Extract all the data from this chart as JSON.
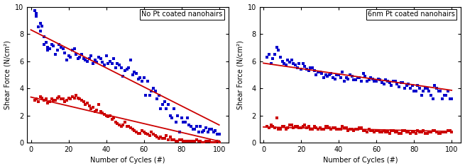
{
  "left_title": "No Pt coated nanohairs",
  "right_title": "6nm Pt coated nanohairs",
  "xlabel": "Number of Cycles (#)",
  "ylabel": "Shear Force (N/cm²)",
  "ylim": [
    0,
    10
  ],
  "xlim": [
    -2,
    105
  ],
  "yticks": [
    0,
    2,
    4,
    6,
    8,
    10
  ],
  "xticks": [
    0,
    20,
    40,
    60,
    80,
    100
  ],
  "left_blue_x": [
    2,
    3,
    4,
    5,
    6,
    7,
    8,
    9,
    10,
    12,
    14,
    16,
    18,
    20,
    22,
    24,
    26,
    28,
    30,
    32,
    34,
    36,
    38,
    40,
    42,
    44,
    46,
    48,
    50,
    52,
    54,
    56,
    58,
    60,
    62,
    64,
    66,
    68,
    70,
    72,
    74,
    76,
    78,
    80,
    82,
    84,
    86,
    88,
    90,
    92,
    94,
    96,
    98,
    100,
    3,
    5,
    7,
    9,
    11,
    13,
    15,
    17,
    19,
    21,
    23,
    25,
    27,
    29,
    31,
    33,
    35,
    37,
    39,
    41,
    43,
    45,
    47,
    49,
    51,
    53,
    55,
    57,
    59,
    61,
    63,
    65,
    67,
    69,
    71,
    73,
    75,
    77,
    79,
    81,
    83,
    85,
    87,
    89,
    91,
    93,
    95,
    97,
    99
  ],
  "left_blue_y": [
    9.7,
    9.3,
    8.5,
    8.2,
    8.6,
    7.8,
    7.4,
    7.0,
    6.9,
    7.1,
    6.8,
    7.0,
    6.6,
    6.4,
    6.8,
    6.5,
    6.3,
    6.2,
    6.0,
    6.4,
    6.1,
    6.3,
    5.9,
    6.4,
    6.0,
    6.2,
    5.8,
    5.5,
    5.3,
    5.5,
    5.0,
    5.1,
    4.8,
    4.8,
    4.5,
    3.8,
    3.8,
    3.5,
    2.8,
    2.5,
    2.0,
    2.5,
    2.0,
    1.8,
    1.5,
    1.3,
    1.0,
    1.2,
    1.2,
    0.9,
    0.8,
    1.0,
    0.9,
    0.6,
    9.5,
    8.8,
    7.2,
    6.8,
    7.2,
    6.5,
    7.2,
    6.9,
    6.1,
    6.3,
    6.9,
    6.2,
    6.5,
    6.1,
    6.2,
    5.8,
    5.9,
    6.2,
    5.7,
    5.8,
    5.8,
    5.5,
    5.7,
    4.9,
    5.4,
    6.1,
    5.2,
    4.7,
    4.5,
    3.5,
    3.5,
    4.0,
    3.2,
    2.5,
    3.0,
    2.8,
    1.8,
    1.5,
    0.8,
    1.5,
    1.8,
    1.2,
    1.0,
    0.8,
    0.8,
    1.1,
    1.0,
    0.8,
    0.6
  ],
  "left_blue_line_x": [
    0,
    100
  ],
  "left_blue_line_y": [
    8.3,
    1.3
  ],
  "left_red_x": [
    2,
    4,
    6,
    8,
    10,
    12,
    14,
    16,
    18,
    20,
    22,
    24,
    26,
    28,
    30,
    32,
    34,
    36,
    38,
    40,
    42,
    44,
    46,
    48,
    50,
    52,
    54,
    56,
    58,
    60,
    62,
    64,
    66,
    68,
    70,
    72,
    74,
    76,
    78,
    80,
    82,
    84,
    86,
    88,
    90,
    92,
    94,
    96,
    98,
    100,
    3,
    5,
    7,
    9,
    11,
    13,
    15,
    17,
    19,
    21,
    23,
    25,
    27,
    29,
    31,
    33,
    35,
    37,
    39,
    41,
    43,
    45,
    47,
    49,
    51,
    53,
    55,
    57,
    59,
    61,
    63,
    65,
    67,
    69,
    71,
    73,
    75,
    77,
    79,
    81,
    83,
    85,
    87,
    89,
    91,
    93,
    95,
    97,
    99
  ],
  "left_red_y": [
    3.1,
    3.0,
    3.3,
    3.2,
    3.0,
    3.1,
    3.3,
    3.2,
    3.0,
    3.3,
    3.4,
    3.5,
    3.2,
    3.0,
    2.9,
    2.5,
    2.3,
    2.8,
    2.2,
    2.0,
    2.0,
    1.8,
    1.4,
    1.2,
    1.5,
    1.2,
    1.0,
    0.8,
    0.7,
    0.8,
    0.6,
    0.8,
    0.5,
    0.3,
    0.3,
    0.5,
    0.4,
    0.2,
    0.1,
    0.2,
    0.1,
    0.1,
    0.1,
    0.2,
    0.1,
    0.0,
    0.1,
    0.0,
    0.0,
    0.0,
    3.2,
    3.4,
    3.1,
    2.9,
    3.2,
    3.1,
    3.4,
    3.2,
    3.1,
    3.2,
    3.3,
    3.3,
    3.1,
    2.8,
    2.7,
    2.6,
    2.4,
    2.3,
    2.1,
    1.9,
    1.7,
    1.5,
    1.3,
    1.3,
    1.2,
    1.1,
    0.9,
    0.7,
    0.9,
    0.7,
    0.5,
    0.6,
    0.4,
    0.4,
    0.3,
    0.2,
    0.2,
    0.1,
    0.2,
    0.1,
    0.1,
    0.1,
    0.1,
    0.1,
    0.0,
    0.1,
    0.1,
    0.0,
    0.1
  ],
  "left_red_line_x": [
    0,
    100
  ],
  "left_red_line_y": [
    3.35,
    0.1
  ],
  "right_blue_x": [
    2,
    4,
    6,
    8,
    10,
    12,
    14,
    16,
    18,
    20,
    22,
    24,
    26,
    28,
    30,
    32,
    34,
    36,
    38,
    40,
    42,
    44,
    46,
    48,
    50,
    52,
    54,
    56,
    58,
    60,
    62,
    64,
    66,
    68,
    70,
    72,
    74,
    76,
    78,
    80,
    82,
    84,
    86,
    88,
    90,
    92,
    94,
    96,
    98,
    100,
    3,
    5,
    7,
    9,
    11,
    13,
    15,
    17,
    19,
    21,
    23,
    25,
    27,
    29,
    31,
    33,
    35,
    37,
    39,
    41,
    43,
    45,
    47,
    49,
    51,
    53,
    55,
    57,
    59,
    61,
    63,
    65,
    67,
    69,
    71,
    73,
    75,
    77,
    79,
    81,
    83,
    85,
    87,
    89,
    91,
    93,
    95,
    97,
    99
  ],
  "right_blue_y": [
    6.3,
    5.8,
    6.5,
    6.8,
    6.0,
    5.7,
    5.9,
    5.8,
    5.5,
    5.4,
    5.6,
    5.3,
    5.5,
    5.0,
    5.2,
    4.8,
    4.9,
    5.1,
    4.7,
    5.0,
    5.2,
    4.8,
    5.0,
    4.6,
    4.8,
    4.5,
    4.9,
    4.6,
    4.7,
    4.5,
    4.6,
    4.3,
    4.5,
    4.2,
    4.5,
    4.1,
    4.4,
    4.2,
    4.0,
    3.8,
    4.2,
    3.5,
    4.0,
    3.8,
    3.2,
    4.0,
    3.8,
    3.5,
    3.8,
    3.2,
    6.5,
    6.2,
    7.0,
    6.3,
    5.8,
    6.1,
    6.1,
    5.7,
    5.8,
    5.8,
    5.4,
    5.5,
    5.3,
    5.2,
    5.1,
    5.0,
    5.0,
    4.8,
    5.0,
    4.8,
    4.5,
    4.7,
    4.9,
    4.6,
    4.8,
    5.1,
    4.5,
    4.8,
    4.5,
    4.7,
    4.4,
    4.6,
    4.4,
    4.5,
    4.3,
    4.4,
    4.0,
    4.3,
    4.2,
    3.8,
    4.0,
    3.8,
    4.0,
    3.5,
    4.2,
    3.8,
    3.2,
    3.5,
    3.2
  ],
  "right_blue_line_x": [
    0,
    100
  ],
  "right_blue_line_y": [
    5.85,
    3.85
  ],
  "right_red_x": [
    2,
    4,
    6,
    8,
    10,
    12,
    14,
    16,
    18,
    20,
    22,
    24,
    26,
    28,
    30,
    32,
    34,
    36,
    38,
    40,
    42,
    44,
    46,
    48,
    50,
    52,
    54,
    56,
    58,
    60,
    62,
    64,
    66,
    68,
    70,
    72,
    74,
    76,
    78,
    80,
    82,
    84,
    86,
    88,
    90,
    92,
    94,
    96,
    98,
    100,
    3,
    5,
    7,
    9,
    11,
    13,
    15,
    17,
    19,
    21,
    23,
    25,
    27,
    29,
    31,
    33,
    35,
    37,
    39,
    41,
    43,
    45,
    47,
    49,
    51,
    53,
    55,
    57,
    59,
    61,
    63,
    65,
    67,
    69,
    71,
    73,
    75,
    77,
    79,
    81,
    83,
    85,
    87,
    89,
    91,
    93,
    95,
    97,
    99
  ],
  "right_red_y": [
    1.2,
    1.3,
    1.1,
    1.0,
    1.2,
    1.0,
    1.3,
    1.1,
    1.2,
    1.1,
    1.3,
    1.2,
    1.0,
    1.1,
    1.1,
    1.0,
    1.2,
    1.0,
    1.1,
    1.0,
    1.2,
    1.1,
    1.0,
    0.9,
    1.0,
    1.1,
    0.9,
    1.0,
    0.9,
    0.9,
    0.8,
    0.9,
    0.8,
    0.9,
    0.8,
    0.7,
    0.9,
    0.8,
    0.7,
    0.8,
    0.9,
    0.8,
    0.7,
    0.8,
    0.9,
    0.8,
    0.7,
    0.8,
    0.9,
    0.8,
    1.1,
    1.2,
    1.8,
    1.0,
    1.2,
    1.1,
    1.3,
    1.2,
    1.1,
    1.2,
    1.1,
    1.0,
    1.2,
    1.0,
    1.0,
    1.2,
    1.1,
    1.1,
    1.0,
    1.0,
    1.1,
    0.9,
    1.0,
    1.0,
    1.1,
    0.9,
    0.8,
    0.9,
    0.8,
    0.9,
    0.8,
    0.8,
    0.7,
    0.9,
    0.8,
    0.7,
    0.9,
    0.8,
    0.8,
    0.7,
    0.8,
    0.9,
    0.7,
    0.8,
    0.9,
    0.7,
    0.8,
    0.8,
    0.9
  ],
  "right_red_line_x": [
    0,
    100
  ],
  "right_red_line_y": [
    1.15,
    0.82
  ],
  "blue_color": "#0000cc",
  "red_color": "#cc0000",
  "bg_color": "#ffffff",
  "marker_size": 2.8,
  "linewidth": 1.3,
  "fontsize_label": 7,
  "fontsize_tick": 7,
  "fontsize_legend": 7
}
